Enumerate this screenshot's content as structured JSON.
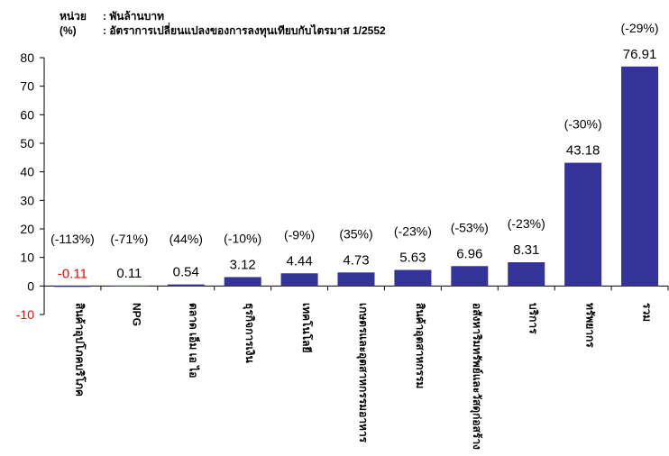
{
  "notes": [
    {
      "key": "หน่วย",
      "text": ": พันล้านบาท"
    },
    {
      "key": "(%)",
      "text": ": อัตราการเปลี่ยนแปลงของการลงทุนเทียบกับไตรมาส 1/2552"
    }
  ],
  "colors": {
    "bar": "#333399",
    "negative_label": "#ff0000",
    "axis": "#000000"
  },
  "chart_data": {
    "type": "bar",
    "title": "",
    "xlabel": "",
    "ylabel": "",
    "ylim": [
      -10,
      80
    ],
    "yticks": [
      -10,
      0,
      10,
      20,
      30,
      40,
      50,
      60,
      70,
      80
    ],
    "grid": false,
    "categories": [
      "สินค้าอุปโภคบริโภค",
      "NPG",
      "ตลาด เอ็ม เอ ไอ",
      "ธุรกิจการเงิน",
      "เทคโนโลยี",
      "เกษตรและอุตสาหกรรมอาหาร",
      "สินค้าอุตสาหกรรม",
      "อสังหาริมทรัพย์และวัสดุก่อสร้าง",
      "บริการ",
      "ทรัพยากร",
      "รวม"
    ],
    "values": [
      -0.11,
      0.11,
      0.54,
      3.12,
      4.44,
      4.73,
      5.63,
      6.96,
      8.31,
      43.18,
      76.91
    ],
    "value_labels": [
      "-0.11",
      "0.11",
      "0.54",
      "3.12",
      "4.44",
      "4.73",
      "5.63",
      "6.96",
      "8.31",
      "43.18",
      "76.91"
    ],
    "change_labels": [
      "(-113%)",
      "(-71%)",
      "(44%)",
      "(-10%)",
      "(-9%)",
      "(35%)",
      "(-23%)",
      "(-53%)",
      "(-23%)",
      "(-30%)",
      "(-29%)"
    ]
  }
}
